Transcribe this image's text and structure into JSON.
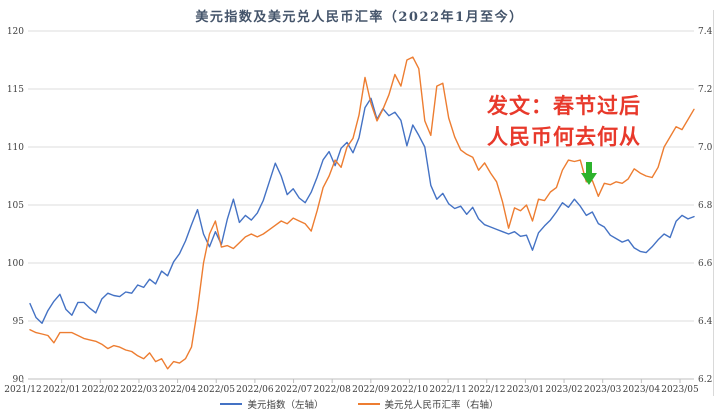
{
  "title": "美元指数及美元兑人民币汇率（2022年1月至今）",
  "annotation": {
    "line1": "发文：春节过后",
    "line2": "人民币何去何从",
    "text_color": "#e8392b",
    "arrow_color": "#2db32d"
  },
  "legend": [
    {
      "label": "美元指数（左轴）",
      "color": "#4472c4"
    },
    {
      "label": "美元兑人民币汇率（右轴）",
      "color": "#ed7d31"
    }
  ],
  "colors": {
    "grid": "#dedede",
    "axis": "#bfbfbf",
    "tick_text": "#404040",
    "title_text": "#44546a",
    "plot_right_border": "#d9d9d9"
  },
  "chart_data": {
    "type": "line",
    "title": "美元指数及美元兑人民币汇率（2022年1月至今）",
    "grid": true,
    "legend_position": "bottom",
    "x_tick_labels": [
      "2021/12",
      "2022/01",
      "2022/02",
      "2022/03",
      "2022/04",
      "2022/05",
      "2022/06",
      "2022/07",
      "2022/08",
      "2022/09",
      "2022/10",
      "2022/11",
      "2022/12",
      "2023/01",
      "2023/02",
      "2023/03",
      "2023/04",
      "2023/05"
    ],
    "left_axis": {
      "range": [
        90,
        120
      ],
      "ticks": [
        120,
        115,
        110,
        105,
        100,
        95,
        90
      ]
    },
    "right_axis": {
      "range": [
        6.2,
        7.4
      ],
      "ticks": [
        7.4,
        7.2,
        7.0,
        6.8,
        6.6,
        6.4,
        6.2
      ]
    },
    "series": [
      {
        "name": "美元指数（左轴）",
        "axis": "left",
        "color": "#4472c4",
        "values": [
          96.5,
          95.3,
          94.8,
          95.9,
          96.7,
          97.3,
          96.0,
          95.5,
          96.6,
          96.6,
          96.1,
          95.7,
          96.9,
          97.4,
          97.2,
          97.1,
          97.5,
          97.4,
          98.1,
          97.9,
          98.6,
          98.2,
          99.3,
          98.9,
          100.1,
          100.8,
          101.9,
          103.3,
          104.6,
          102.5,
          101.4,
          102.7,
          101.6,
          103.8,
          105.5,
          103.5,
          104.1,
          103.7,
          104.3,
          105.4,
          107.0,
          108.6,
          107.5,
          105.9,
          106.4,
          105.6,
          105.2,
          106.1,
          107.4,
          108.9,
          109.6,
          108.4,
          109.9,
          110.4,
          109.5,
          110.8,
          113.4,
          114.2,
          112.4,
          113.3,
          112.7,
          113.0,
          112.3,
          110.1,
          111.9,
          111.0,
          110.0,
          106.7,
          105.5,
          106.0,
          105.1,
          104.7,
          104.9,
          104.2,
          104.8,
          103.8,
          103.3,
          103.1,
          102.9,
          102.7,
          102.5,
          102.7,
          102.3,
          102.4,
          101.1,
          102.6,
          103.2,
          103.7,
          104.4,
          105.2,
          104.8,
          105.5,
          104.9,
          104.1,
          104.4,
          103.4,
          103.1,
          102.4,
          102.1,
          101.8,
          102.0,
          101.3,
          101.0,
          100.9,
          101.4,
          102.0,
          102.5,
          102.2,
          103.6,
          104.1,
          103.8,
          104.0
        ]
      },
      {
        "name": "美元兑人民币汇率（右轴）",
        "axis": "right",
        "color": "#ed7d31",
        "values": [
          6.37,
          6.36,
          6.355,
          6.35,
          6.325,
          6.36,
          6.36,
          6.36,
          6.35,
          6.34,
          6.335,
          6.33,
          6.32,
          6.305,
          6.315,
          6.31,
          6.3,
          6.295,
          6.28,
          6.27,
          6.29,
          6.26,
          6.27,
          6.235,
          6.26,
          6.255,
          6.27,
          6.31,
          6.44,
          6.6,
          6.7,
          6.745,
          6.655,
          6.66,
          6.65,
          6.67,
          6.69,
          6.7,
          6.69,
          6.7,
          6.715,
          6.73,
          6.745,
          6.735,
          6.755,
          6.745,
          6.735,
          6.71,
          6.78,
          6.86,
          6.9,
          6.955,
          6.93,
          7.0,
          7.03,
          7.11,
          7.24,
          7.15,
          7.09,
          7.13,
          7.18,
          7.25,
          7.21,
          7.3,
          7.31,
          7.27,
          7.09,
          7.04,
          7.21,
          7.22,
          7.1,
          7.035,
          6.99,
          6.975,
          6.965,
          6.92,
          6.945,
          6.91,
          6.88,
          6.81,
          6.72,
          6.79,
          6.78,
          6.8,
          6.745,
          6.82,
          6.815,
          6.845,
          6.86,
          6.92,
          6.955,
          6.95,
          6.955,
          6.88,
          6.885,
          6.83,
          6.875,
          6.87,
          6.88,
          6.875,
          6.89,
          6.925,
          6.91,
          6.9,
          6.895,
          6.93,
          7.0,
          7.035,
          7.07,
          7.06,
          7.095,
          7.13
        ]
      }
    ],
    "annotations": [
      {
        "type": "text",
        "text": "发文：春节过后\n人民币何去何从",
        "color": "#e8392b"
      },
      {
        "type": "arrow-down",
        "near_x_label": "2023/03",
        "points_at_series": "美元兑人民币汇率（右轴）",
        "value": 6.9,
        "color": "#2db32d"
      }
    ]
  }
}
